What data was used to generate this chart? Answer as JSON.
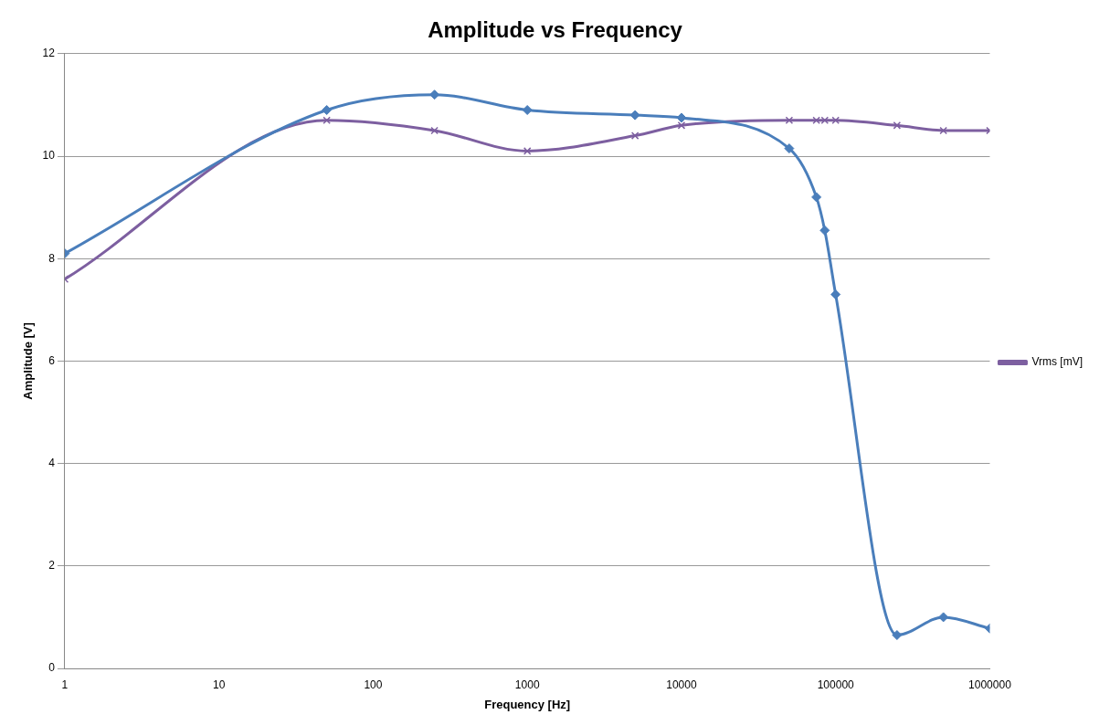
{
  "chart_data": {
    "type": "line",
    "title": "Amplitude vs Frequency",
    "xlabel": "Frequency [Hz]",
    "ylabel": "Amplitude [V]",
    "log": "x",
    "xlim": [
      1,
      1000000
    ],
    "xticks": [
      1,
      10,
      100,
      1000,
      10000,
      100000,
      1000000
    ],
    "ylim": [
      0,
      12
    ],
    "yticks": [
      0,
      2,
      4,
      6,
      8,
      10,
      12
    ],
    "grid": "y",
    "legend": "right",
    "series": [
      {
        "color": "#4a7ebb",
        "marker": "diamond",
        "x": [
          1,
          50,
          250,
          1000,
          5000,
          10000,
          50000,
          75000,
          85000,
          100000,
          250000,
          500000,
          1000000
        ],
        "values": [
          8.1,
          10.9,
          11.2,
          10.9,
          10.8,
          10.75,
          10.15,
          9.2,
          8.55,
          7.3,
          0.65,
          1.0,
          0.78
        ]
      },
      {
        "name": "Vrms [mV]",
        "color": "#7d5fa0",
        "marker": "cross",
        "x": [
          1,
          50,
          250,
          1000,
          5000,
          10000,
          50000,
          75000,
          85000,
          100000,
          250000,
          500000,
          1000000
        ],
        "values": [
          7.6,
          10.7,
          10.5,
          10.1,
          10.4,
          10.6,
          10.7,
          10.7,
          10.7,
          10.7,
          10.6,
          10.5,
          10.5
        ]
      }
    ]
  }
}
